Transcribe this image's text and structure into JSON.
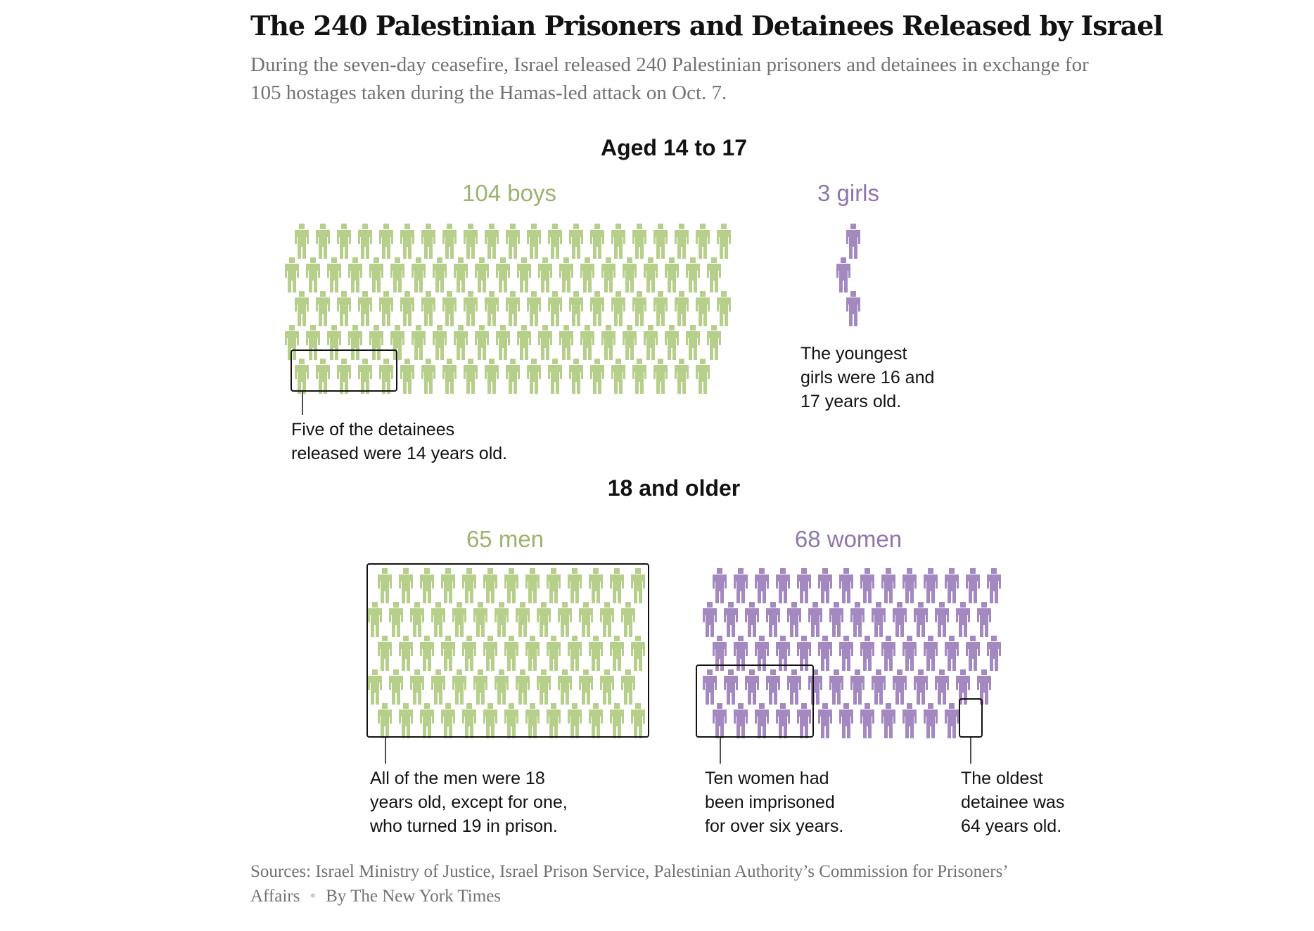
{
  "header": {
    "title": "The 240 Palestinian Prisoners and Detainees Released by Israel",
    "subtitle": "During the seven-day ceasefire, Israel released 240 Palestinian prisoners and detainees in exchange for 105 hostages taken during the Hamas-led attack on Oct. 7."
  },
  "sections": {
    "minors": "Aged 14 to 17",
    "adults": "18 and older"
  },
  "groups": {
    "boys": "104 boys",
    "girls": "3 girls",
    "men": "65 men",
    "women": "68 women"
  },
  "annotations": {
    "boys": [
      "Five of the detainees",
      "released were 14 years old."
    ],
    "girls": [
      "The youngest",
      "girls were 16 and",
      "17 years old."
    ],
    "men": [
      "All of the men were 18",
      "years old, except for one,",
      "who turned 19 in prison."
    ],
    "women_left": [
      "Ten women had",
      "been imprisoned",
      "for over six years."
    ],
    "women_right": [
      "The oldest",
      "detainee was",
      "64 years old."
    ]
  },
  "footer": {
    "sources": "Sources: Israel Ministry of Justice, Israel Prison Service, Palestinian Authority’s Commission for Prisoners’ Affairs",
    "credit": "By The New York Times"
  },
  "colors": {
    "green": "#b6cf8a",
    "purple": "#a489c1",
    "text": "#121212",
    "muted": "#727272"
  },
  "chart_data": {
    "type": "icon-array",
    "total": 240,
    "series": [
      {
        "name": "boys",
        "age_group": "Aged 14 to 17",
        "count": 104,
        "color": "#b6cf8a",
        "highlighted": 5
      },
      {
        "name": "girls",
        "age_group": "Aged 14 to 17",
        "count": 3,
        "color": "#a489c1",
        "highlighted": 0
      },
      {
        "name": "men",
        "age_group": "18 and older",
        "count": 65,
        "color": "#b6cf8a",
        "highlighted": 64
      },
      {
        "name": "women",
        "age_group": "18 and older",
        "count": 68,
        "color": "#a489c1",
        "highlighted": 11
      }
    ]
  }
}
